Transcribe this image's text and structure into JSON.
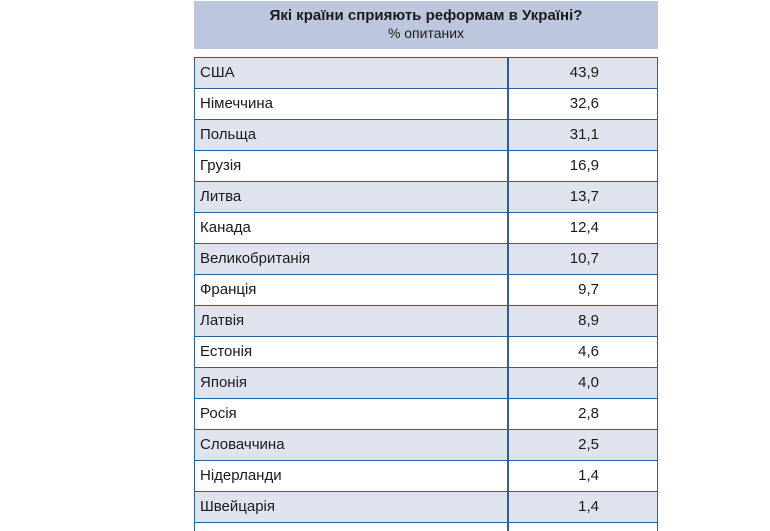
{
  "header": {
    "title": "Які країни сприяють реформам в Україні?",
    "subtitle": "% опитаних"
  },
  "chart_data": {
    "type": "table",
    "title": "Які країни сприяють реформам в Україні?",
    "subtitle": "% опитаних",
    "rows": [
      {
        "country": "США",
        "value": "43,9"
      },
      {
        "country": "Німеччина",
        "value": "32,6"
      },
      {
        "country": "Польща",
        "value": "31,1"
      },
      {
        "country": "Грузія",
        "value": "16,9"
      },
      {
        "country": "Литва",
        "value": "13,7"
      },
      {
        "country": "Канада",
        "value": "12,4"
      },
      {
        "country": "Великобританія",
        "value": "10,7"
      },
      {
        "country": "Франція",
        "value": "9,7"
      },
      {
        "country": "Латвія",
        "value": "8,9"
      },
      {
        "country": "Естонія",
        "value": "4,6"
      },
      {
        "country": "Японія",
        "value": "4,0"
      },
      {
        "country": "Росія",
        "value": "2,8"
      },
      {
        "country": "Словаччина",
        "value": "2,5"
      },
      {
        "country": "Нідерланди",
        "value": "1,4"
      },
      {
        "country": "Швейцарія",
        "value": "1,4"
      }
    ]
  }
}
